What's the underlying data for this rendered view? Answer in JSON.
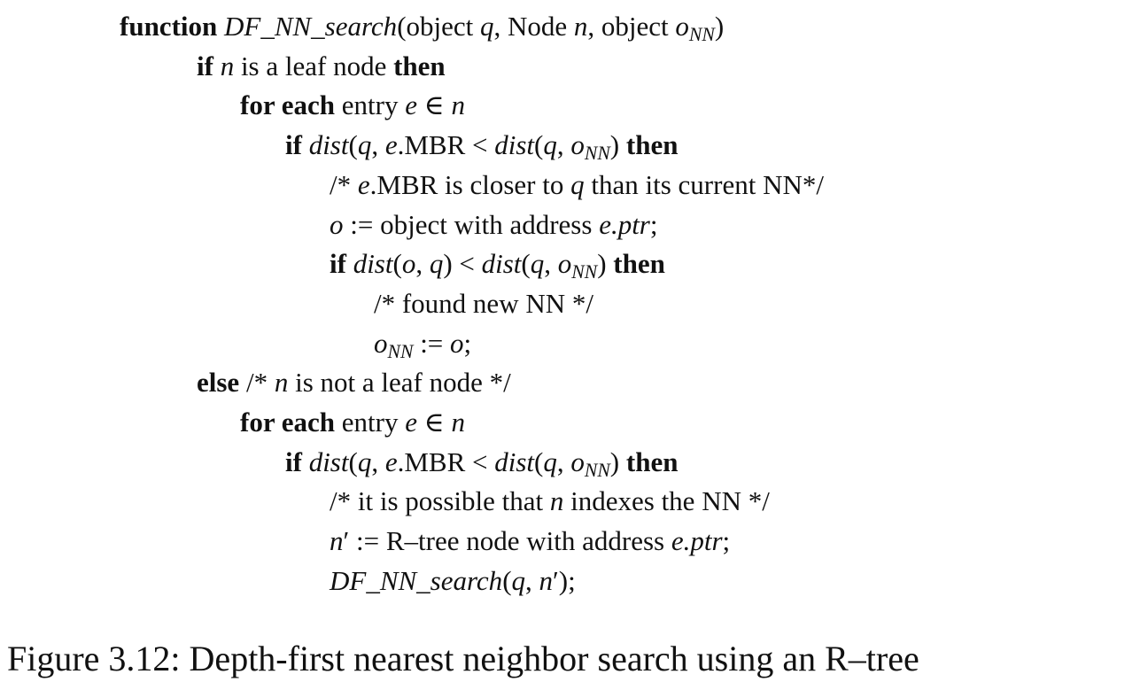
{
  "algorithm": {
    "lines": [
      {
        "indent": 0,
        "segments": [
          {
            "text": "function",
            "style": "kw"
          },
          {
            "text": " ",
            "style": "rm"
          },
          {
            "text": "DF_NN_search",
            "style": "it"
          },
          {
            "text": "(object ",
            "style": "rm"
          },
          {
            "text": "q",
            "style": "it"
          },
          {
            "text": ", Node ",
            "style": "rm"
          },
          {
            "text": "n",
            "style": "it"
          },
          {
            "text": ", object ",
            "style": "rm"
          },
          {
            "text": "o",
            "style": "it"
          },
          {
            "text": "NN",
            "style": "sub"
          },
          {
            "text": ")",
            "style": "rm"
          }
        ]
      },
      {
        "indent": 1,
        "segments": [
          {
            "text": "if",
            "style": "kw"
          },
          {
            "text": " ",
            "style": "rm"
          },
          {
            "text": "n",
            "style": "it"
          },
          {
            "text": " is a leaf node ",
            "style": "rm"
          },
          {
            "text": "then",
            "style": "kw"
          }
        ]
      },
      {
        "indent": 2,
        "segments": [
          {
            "text": "for each",
            "style": "kw"
          },
          {
            "text": " entry ",
            "style": "rm"
          },
          {
            "text": "e",
            "style": "it"
          },
          {
            "text": " ∈ ",
            "style": "rm"
          },
          {
            "text": "n",
            "style": "it"
          }
        ]
      },
      {
        "indent": 3,
        "segments": [
          {
            "text": "if",
            "style": "kw"
          },
          {
            "text": " ",
            "style": "rm"
          },
          {
            "text": "dist",
            "style": "it"
          },
          {
            "text": "(",
            "style": "rm"
          },
          {
            "text": "q",
            "style": "it"
          },
          {
            "text": ", ",
            "style": "rm"
          },
          {
            "text": "e",
            "style": "it"
          },
          {
            "text": ".MBR < ",
            "style": "rm"
          },
          {
            "text": "dist",
            "style": "it"
          },
          {
            "text": "(",
            "style": "rm"
          },
          {
            "text": "q",
            "style": "it"
          },
          {
            "text": ", ",
            "style": "rm"
          },
          {
            "text": "o",
            "style": "it"
          },
          {
            "text": "NN",
            "style": "sub"
          },
          {
            "text": ") ",
            "style": "rm"
          },
          {
            "text": "then",
            "style": "kw"
          }
        ]
      },
      {
        "indent": 4,
        "segments": [
          {
            "text": "/* ",
            "style": "rm"
          },
          {
            "text": "e",
            "style": "it"
          },
          {
            "text": ".MBR is closer to ",
            "style": "rm"
          },
          {
            "text": "q",
            "style": "it"
          },
          {
            "text": " than its current NN*/",
            "style": "rm"
          }
        ]
      },
      {
        "indent": 4,
        "segments": [
          {
            "text": "o",
            "style": "it"
          },
          {
            "text": " := object with address ",
            "style": "rm"
          },
          {
            "text": "e.ptr",
            "style": "it"
          },
          {
            "text": ";",
            "style": "rm"
          }
        ]
      },
      {
        "indent": 4,
        "segments": [
          {
            "text": "if",
            "style": "kw"
          },
          {
            "text": " ",
            "style": "rm"
          },
          {
            "text": "dist",
            "style": "it"
          },
          {
            "text": "(",
            "style": "rm"
          },
          {
            "text": "o",
            "style": "it"
          },
          {
            "text": ", ",
            "style": "rm"
          },
          {
            "text": "q",
            "style": "it"
          },
          {
            "text": ") < ",
            "style": "rm"
          },
          {
            "text": "dist",
            "style": "it"
          },
          {
            "text": "(",
            "style": "rm"
          },
          {
            "text": "q",
            "style": "it"
          },
          {
            "text": ", ",
            "style": "rm"
          },
          {
            "text": "o",
            "style": "it"
          },
          {
            "text": "NN",
            "style": "sub"
          },
          {
            "text": ") ",
            "style": "rm"
          },
          {
            "text": "then",
            "style": "kw"
          }
        ]
      },
      {
        "indent": 5,
        "segments": [
          {
            "text": "/* found new NN */",
            "style": "rm"
          }
        ]
      },
      {
        "indent": 5,
        "segments": [
          {
            "text": "o",
            "style": "it"
          },
          {
            "text": "NN",
            "style": "sub"
          },
          {
            "text": " := ",
            "style": "rm"
          },
          {
            "text": "o",
            "style": "it"
          },
          {
            "text": ";",
            "style": "rm"
          }
        ]
      },
      {
        "indent": 1,
        "segments": [
          {
            "text": "else",
            "style": "kw"
          },
          {
            "text": " /* ",
            "style": "rm"
          },
          {
            "text": "n",
            "style": "it"
          },
          {
            "text": " is not a leaf node */",
            "style": "rm"
          }
        ]
      },
      {
        "indent": 2,
        "segments": [
          {
            "text": "for each",
            "style": "kw"
          },
          {
            "text": " entry ",
            "style": "rm"
          },
          {
            "text": "e",
            "style": "it"
          },
          {
            "text": " ∈ ",
            "style": "rm"
          },
          {
            "text": "n",
            "style": "it"
          }
        ]
      },
      {
        "indent": 3,
        "segments": [
          {
            "text": "if",
            "style": "kw"
          },
          {
            "text": " ",
            "style": "rm"
          },
          {
            "text": "dist",
            "style": "it"
          },
          {
            "text": "(",
            "style": "rm"
          },
          {
            "text": "q",
            "style": "it"
          },
          {
            "text": ", ",
            "style": "rm"
          },
          {
            "text": "e",
            "style": "it"
          },
          {
            "text": ".MBR < ",
            "style": "rm"
          },
          {
            "text": "dist",
            "style": "it"
          },
          {
            "text": "(",
            "style": "rm"
          },
          {
            "text": "q",
            "style": "it"
          },
          {
            "text": ", ",
            "style": "rm"
          },
          {
            "text": "o",
            "style": "it"
          },
          {
            "text": "NN",
            "style": "sub"
          },
          {
            "text": ") ",
            "style": "rm"
          },
          {
            "text": "then",
            "style": "kw"
          }
        ]
      },
      {
        "indent": 4,
        "segments": [
          {
            "text": "/* it is possible that ",
            "style": "rm"
          },
          {
            "text": "n",
            "style": "it"
          },
          {
            "text": " indexes the NN */",
            "style": "rm"
          }
        ]
      },
      {
        "indent": 4,
        "segments": [
          {
            "text": "n",
            "style": "it"
          },
          {
            "text": "′",
            "style": "rm"
          },
          {
            "text": " := R–tree node with address ",
            "style": "rm"
          },
          {
            "text": "e.ptr",
            "style": "it"
          },
          {
            "text": ";",
            "style": "rm"
          }
        ]
      },
      {
        "indent": 4,
        "segments": [
          {
            "text": "DF_NN_search",
            "style": "it"
          },
          {
            "text": "(",
            "style": "rm"
          },
          {
            "text": "q",
            "style": "it"
          },
          {
            "text": ", ",
            "style": "rm"
          },
          {
            "text": "n",
            "style": "it"
          },
          {
            "text": "′",
            "style": "rm"
          },
          {
            "text": ");",
            "style": "rm"
          }
        ]
      }
    ]
  },
  "caption": "Figure 3.12: Depth-first nearest neighbor search using an R–tree"
}
